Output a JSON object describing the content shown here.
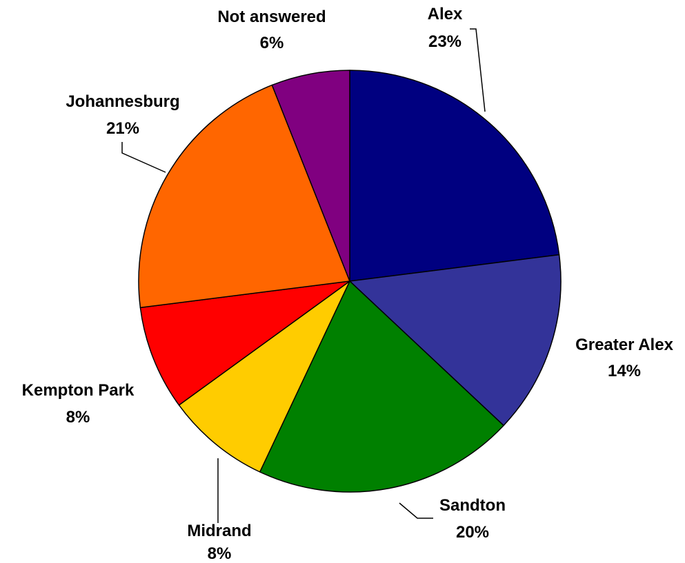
{
  "chart_data": {
    "type": "pie",
    "title": "",
    "start_angle_deg": 0,
    "direction": "clockwise",
    "legend": "none",
    "slices": [
      {
        "label": "Alex",
        "value": 23,
        "value_label": "23%",
        "color": "#000080"
      },
      {
        "label": "Greater Alex",
        "value": 14,
        "value_label": "14%",
        "color": "#333399"
      },
      {
        "label": "Sandton",
        "value": 20,
        "value_label": "20%",
        "color": "#008000"
      },
      {
        "label": "Midrand",
        "value": 8,
        "value_label": "8%",
        "color": "#FFCC00"
      },
      {
        "label": "Kempton Park",
        "value": 8,
        "value_label": "8%",
        "color": "#FF0000"
      },
      {
        "label": "Johannesburg",
        "value": 21,
        "value_label": "21%",
        "color": "#FF6600"
      },
      {
        "label": "Not answered",
        "value": 6,
        "value_label": "6%",
        "color": "#800080"
      }
    ]
  }
}
